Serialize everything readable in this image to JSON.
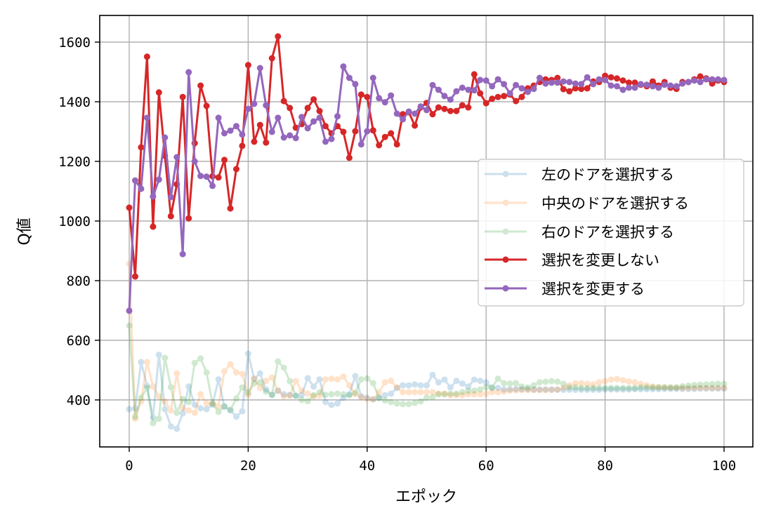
{
  "chart_data": {
    "type": "line",
    "title": "",
    "xlabel": "エポック",
    "ylabel": "Q値",
    "xlim": [
      -5,
      105
    ],
    "ylim": [
      235,
      1685
    ],
    "xticks": [
      0,
      20,
      40,
      60,
      80,
      100
    ],
    "yticks": [
      400,
      600,
      800,
      1000,
      1200,
      1400,
      1600
    ],
    "grid": true,
    "legend_position": "center right",
    "x": [
      0,
      1,
      2,
      3,
      4,
      5,
      6,
      7,
      8,
      9,
      10,
      11,
      12,
      13,
      14,
      15,
      16,
      17,
      18,
      19,
      20,
      21,
      22,
      23,
      24,
      25,
      26,
      27,
      28,
      29,
      30,
      31,
      32,
      33,
      34,
      35,
      36,
      37,
      38,
      39,
      40,
      41,
      42,
      43,
      44,
      45,
      46,
      47,
      48,
      49,
      50,
      51,
      52,
      53,
      54,
      55,
      56,
      57,
      58,
      59,
      60,
      61,
      62,
      63,
      64,
      65,
      66,
      67,
      68,
      69,
      70,
      71,
      72,
      73,
      74,
      75,
      76,
      77,
      78,
      79,
      80,
      81,
      82,
      83,
      84,
      85,
      86,
      87,
      88,
      89,
      90,
      91,
      92,
      93,
      94,
      95,
      96,
      97,
      98,
      99,
      100
    ],
    "series": [
      {
        "name": "左のドアを選択する",
        "color": "#1f77b4",
        "alpha": 0.22,
        "values": [
          369,
          372,
          527,
          447,
          341,
          551,
          369,
          311,
          303,
          355,
          445,
          384,
          372,
          369,
          384,
          469,
          377,
          365,
          344,
          362,
          555,
          471,
          489,
          435,
          417,
          431,
          419,
          417,
          414,
          417,
          473,
          445,
          469,
          393,
          383,
          388,
          407,
          419,
          480,
          412,
          407,
          402,
          407,
          416,
          421,
          440,
          449,
          449,
          452,
          449,
          449,
          484,
          459,
          468,
          442,
          464,
          455,
          445,
          468,
          464,
          459,
          440,
          440,
          435,
          435,
          436,
          436,
          436,
          435,
          435,
          435,
          435,
          434,
          434,
          434,
          434,
          434,
          434,
          434,
          434,
          435,
          435,
          435,
          435,
          435,
          436,
          436,
          436,
          436,
          436,
          437,
          437,
          437,
          437,
          437,
          437,
          438,
          438,
          438,
          438,
          438
        ]
      },
      {
        "name": "中央のドアを選択する",
        "color": "#ff7f0e",
        "alpha": 0.22,
        "values": [
          856,
          337,
          395,
          527,
          445,
          412,
          395,
          365,
          489,
          372,
          365,
          357,
          419,
          388,
          388,
          379,
          496,
          520,
          492,
          487,
          417,
          471,
          440,
          464,
          475,
          431,
          412,
          414,
          463,
          431,
          421,
          412,
          414,
          469,
          471,
          469,
          478,
          449,
          420,
          410,
          404,
          402,
          426,
          459,
          464,
          442,
          426,
          426,
          426,
          426,
          426,
          426,
          421,
          421,
          416,
          416,
          416,
          419,
          419,
          419,
          421,
          426,
          426,
          428,
          431,
          432,
          433,
          433,
          433,
          433,
          433,
          433,
          435,
          440,
          449,
          456,
          456,
          454,
          452,
          459,
          463,
          468,
          470,
          466,
          462,
          459,
          454,
          449,
          445,
          443,
          442,
          441,
          441,
          440,
          440,
          440,
          440,
          440,
          440,
          440,
          440
        ]
      },
      {
        "name": "右のドアを選択する",
        "color": "#2ca02c",
        "alpha": 0.22,
        "values": [
          649,
          344,
          407,
          440,
          322,
          337,
          541,
          443,
          357,
          403,
          393,
          524,
          539,
          492,
          388,
          360,
          379,
          367,
          405,
          442,
          424,
          456,
          459,
          428,
          417,
          529,
          508,
          463,
          414,
          400,
          396,
          416,
          426,
          417,
          419,
          421,
          419,
          416,
          424,
          469,
          472,
          456,
          407,
          398,
          393,
          388,
          386,
          386,
          390,
          395,
          407,
          409,
          419,
          419,
          421,
          421,
          426,
          430,
          431,
          435,
          442,
          442,
          471,
          456,
          455,
          456,
          445,
          442,
          449,
          459,
          461,
          463,
          461,
          454,
          442,
          442,
          440,
          440,
          440,
          440,
          440,
          440,
          440,
          440,
          440,
          440,
          442,
          442,
          442,
          442,
          442,
          442,
          442,
          446,
          448,
          450,
          451,
          452,
          453,
          454,
          454
        ]
      },
      {
        "name": "選択を変更しない",
        "color": "#d62728",
        "alpha": 1.0,
        "values": [
          1045,
          814,
          1247,
          1551,
          981,
          1431,
          1219,
          1016,
          1123,
          1416,
          1009,
          1261,
          1454,
          1386,
          1150,
          1146,
          1205,
          1042,
          1174,
          1252,
          1523,
          1266,
          1322,
          1263,
          1546,
          1619,
          1402,
          1379,
          1313,
          1325,
          1379,
          1408,
          1369,
          1318,
          1294,
          1318,
          1299,
          1212,
          1301,
          1424,
          1416,
          1304,
          1254,
          1282,
          1294,
          1257,
          1358,
          1365,
          1320,
          1381,
          1396,
          1358,
          1381,
          1376,
          1369,
          1369,
          1388,
          1381,
          1492,
          1428,
          1395,
          1410,
          1416,
          1419,
          1424,
          1402,
          1416,
          1445,
          1454,
          1466,
          1475,
          1473,
          1480,
          1442,
          1435,
          1445,
          1443,
          1445,
          1468,
          1466,
          1487,
          1482,
          1478,
          1471,
          1464,
          1464,
          1457,
          1452,
          1468,
          1454,
          1466,
          1447,
          1443,
          1466,
          1466,
          1475,
          1485,
          1478,
          1461,
          1471,
          1466
        ]
      },
      {
        "name": "選択を変更する",
        "color": "#9467bd",
        "alpha": 1.0,
        "values": [
          699,
          1136,
          1108,
          1346,
          1082,
          1139,
          1280,
          1080,
          1214,
          889,
          1499,
          1200,
          1151,
          1149,
          1118,
          1346,
          1294,
          1303,
          1318,
          1290,
          1376,
          1393,
          1513,
          1388,
          1299,
          1346,
          1280,
          1287,
          1278,
          1349,
          1311,
          1334,
          1346,
          1266,
          1275,
          1351,
          1518,
          1480,
          1459,
          1257,
          1301,
          1480,
          1412,
          1398,
          1421,
          1360,
          1341,
          1367,
          1360,
          1384,
          1372,
          1456,
          1440,
          1419,
          1407,
          1435,
          1447,
          1440,
          1438,
          1473,
          1471,
          1452,
          1475,
          1459,
          1428,
          1456,
          1445,
          1433,
          1443,
          1480,
          1461,
          1464,
          1464,
          1468,
          1466,
          1461,
          1459,
          1482,
          1459,
          1475,
          1473,
          1454,
          1452,
          1440,
          1447,
          1447,
          1459,
          1457,
          1452,
          1447,
          1457,
          1454,
          1452,
          1461,
          1466,
          1471,
          1466,
          1475,
          1475,
          1475,
          1473
        ]
      }
    ]
  },
  "legend": {
    "items": [
      {
        "label": "左のドアを選択する"
      },
      {
        "label": "中央のドアを選択する"
      },
      {
        "label": "右のドアを選択する"
      },
      {
        "label": "選択を変更しない"
      },
      {
        "label": "選択を変更する"
      }
    ]
  },
  "axes": {
    "xlabel": "エポック",
    "ylabel": "Q値"
  }
}
